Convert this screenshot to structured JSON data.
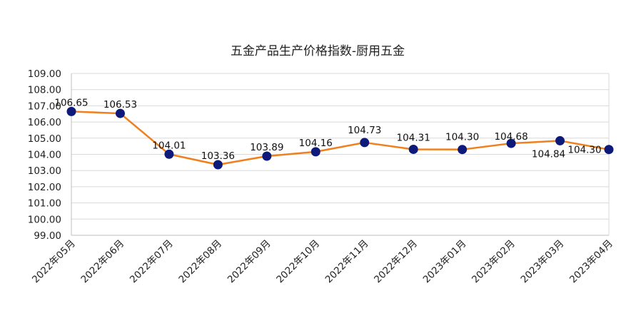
{
  "chart_data": {
    "type": "line",
    "title": "五金产品生产价格指数-厨用五金",
    "xlabel": "",
    "ylabel": "",
    "categories": [
      "2022年05月",
      "2022年06月",
      "2022年07月",
      "2022年08月",
      "2022年09月",
      "2022年10月",
      "2022年11月",
      "2022年12月",
      "2023年01月",
      "2023年02月",
      "2023年03月",
      "2023年04月"
    ],
    "series": [
      {
        "values": [
          106.65,
          106.53,
          104.01,
          103.36,
          103.89,
          104.16,
          104.73,
          104.31,
          104.3,
          104.68,
          104.84,
          104.3
        ]
      }
    ],
    "data_labels": [
      "106.65",
      "106.53",
      "104.01",
      "103.36",
      "103.89",
      "104.16",
      "104.73",
      "104.31",
      "104.30",
      "104.68",
      "104.84",
      "104.30"
    ],
    "y_tick_labels": [
      "99.00",
      "100.00",
      "101.00",
      "102.00",
      "103.00",
      "104.00",
      "105.00",
      "106.00",
      "107.00",
      "108.00",
      "109.00"
    ],
    "ylim": [
      99,
      109
    ],
    "y_step": 1,
    "grid": true,
    "legend": "none",
    "colors": {
      "line": "#f07f1c",
      "marker": "#0d1a7a",
      "grid": "#d9d9d9",
      "axis": "#bfbfbf"
    }
  }
}
